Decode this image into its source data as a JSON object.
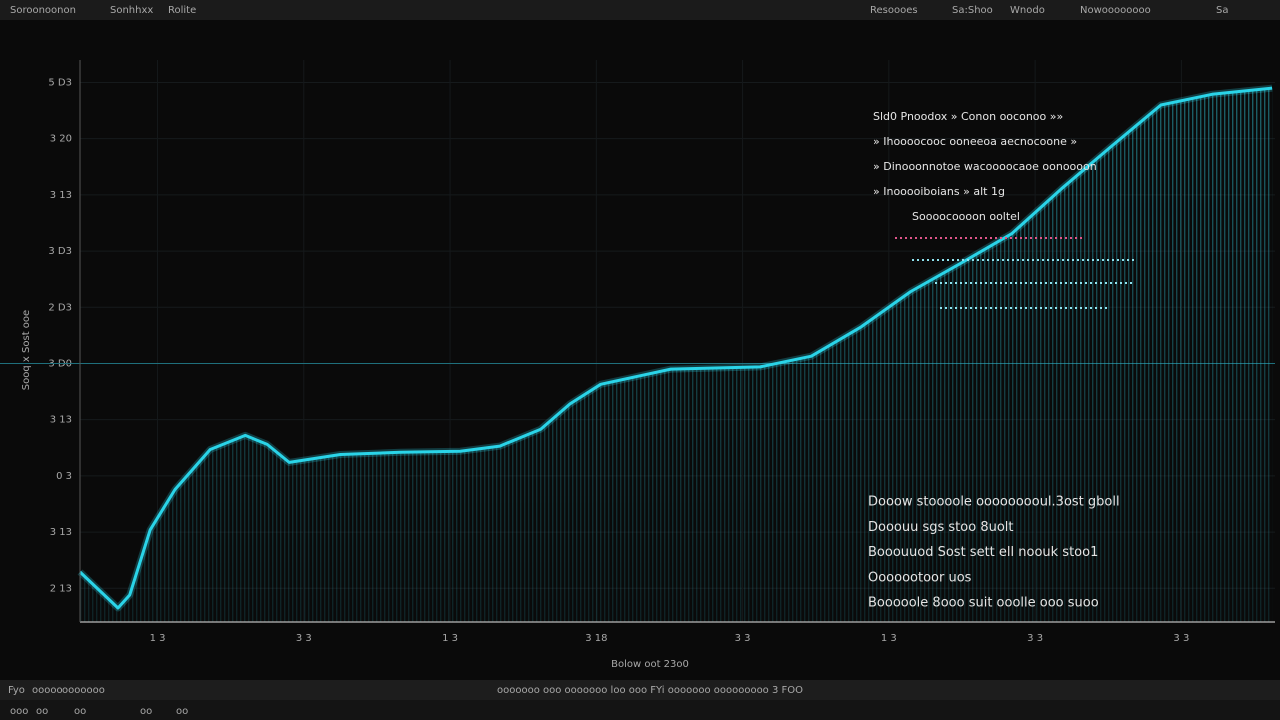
{
  "toolbar": {
    "left": [
      "Soroonoonon",
      "Sonhhxx",
      "Rolite"
    ],
    "right": [
      "Resoooes",
      "Sa:Shoo",
      "Wnodo",
      "Nowoooooooo",
      "Sa"
    ]
  },
  "chart_data": {
    "type": "line",
    "y_label": "Sooq x Sost ooe",
    "x_label": "Bolow oot 23o0",
    "xlim": [
      0.47,
      8.64
    ],
    "ylim": [
      0.4,
      10.4
    ],
    "xticks": [
      {
        "value": 1,
        "label": "1 3"
      },
      {
        "value": 2,
        "label": "3 3"
      },
      {
        "value": 3,
        "label": "1 3"
      },
      {
        "value": 4,
        "label": "3 18"
      },
      {
        "value": 5,
        "label": "3 3"
      },
      {
        "value": 6,
        "label": "1 3"
      },
      {
        "value": 7,
        "label": "3 3"
      },
      {
        "value": 8,
        "label": "3 3"
      }
    ],
    "yticks": [
      {
        "value": 1,
        "label": "2 13"
      },
      {
        "value": 2,
        "label": "3 13"
      },
      {
        "value": 3,
        "label": "0 3"
      },
      {
        "value": 4,
        "label": "3 13"
      },
      {
        "value": 5,
        "label": "3 D0"
      },
      {
        "value": 6,
        "label": "2 D3"
      },
      {
        "value": 7,
        "label": "3 D3"
      },
      {
        "value": 8,
        "label": "3 13"
      },
      {
        "value": 9,
        "label": "3 20"
      },
      {
        "value": 10,
        "label": "5 D3"
      }
    ],
    "reference_line": 5,
    "grid": true,
    "x": [
      0.47,
      0.6,
      0.73,
      0.81,
      0.95,
      1.12,
      1.36,
      1.6,
      1.75,
      1.9,
      2.25,
      2.66,
      3.07,
      3.34,
      3.62,
      3.82,
      4.03,
      4.51,
      5.12,
      5.47,
      5.81,
      6.15,
      6.49,
      6.84,
      7.18,
      7.52,
      7.86,
      8.21,
      8.62
    ],
    "series": [
      {
        "color": "#2ad4e8",
        "values": [
          1.29,
          0.97,
          0.65,
          0.88,
          2.04,
          2.76,
          3.47,
          3.72,
          3.56,
          3.24,
          3.38,
          3.42,
          3.44,
          3.53,
          3.83,
          4.28,
          4.63,
          4.9,
          4.94,
          5.13,
          5.65,
          6.28,
          6.78,
          7.31,
          8.11,
          8.86,
          9.6,
          9.79,
          9.9
        ]
      }
    ]
  },
  "annotations": {
    "upper": [
      "Sld0 Pnoodox » Conon ooconoo »»",
      "» Ihoooocooc ooneeoa aecnocoone »",
      "» Dinooonnotoe wacoooocaoe oonoooon",
      "» Inooooiboians » alt 1g",
      "Soooocoooon ooltel"
    ],
    "lower": [
      "Dooow stoooole ooooooooul.3ost gboll",
      "Dooouu sgs stoo 8uolt",
      "Booouuod Sost sett ell noouk stoo1",
      "Ooooootoor uos",
      "Booooole 8ooo suit ooolle ooo suoo"
    ]
  },
  "status_bar": {
    "left": [
      "Fyo",
      "ooooo",
      "ooooooo"
    ],
    "center": "ooooooo ooo ooooooo loo ooo FYi ooooooo ooooooooo 3 FOO",
    "bottom": [
      "ooo",
      "oo",
      "oo",
      "oo",
      "oo"
    ]
  }
}
